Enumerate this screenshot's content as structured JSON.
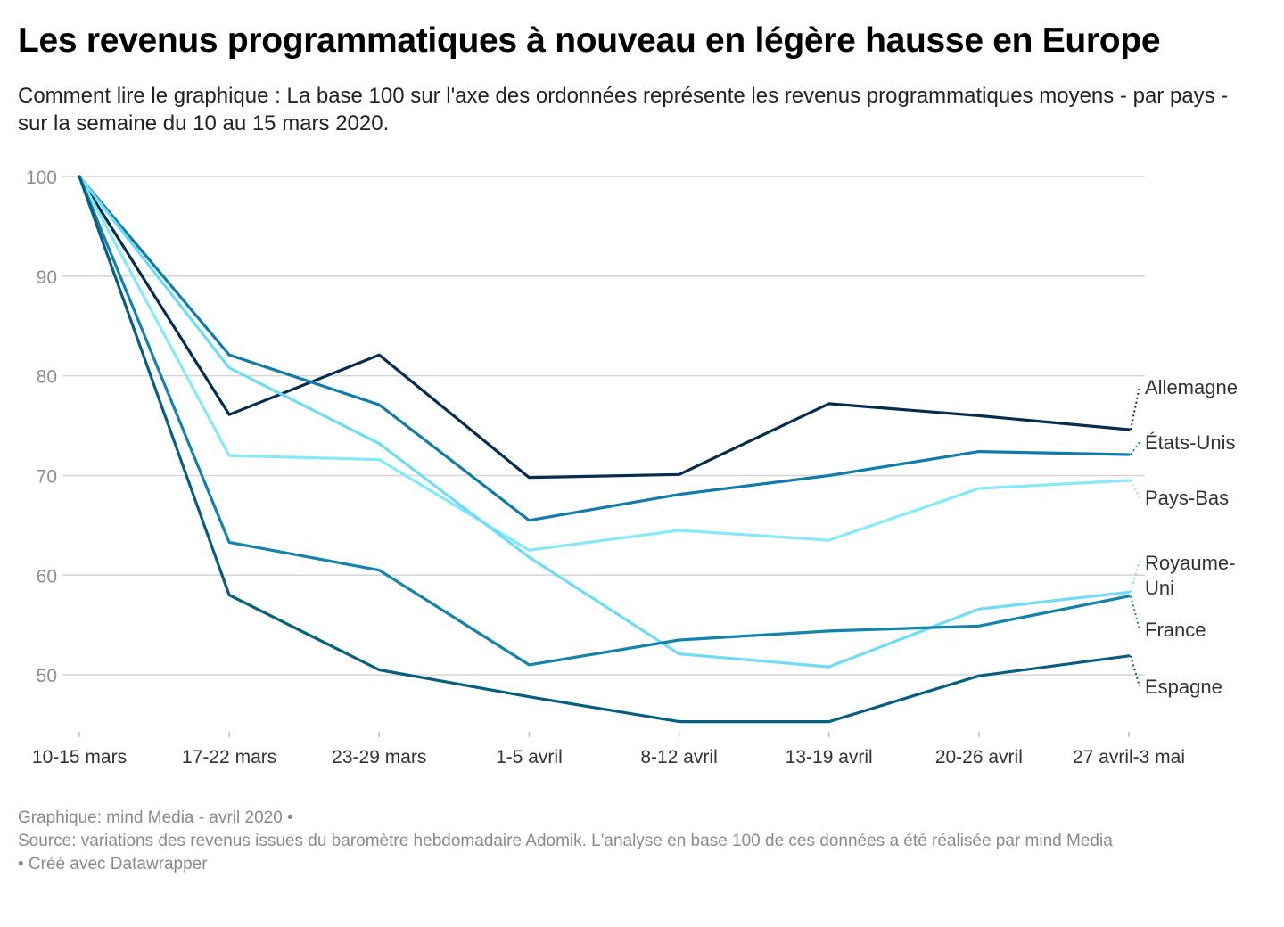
{
  "header": {
    "title": "Les revenus programmatiques à nouveau en légère hausse en Europe",
    "subtitle": "Comment lire le graphique : La base 100 sur l'axe des ordonnées représente les revenus programmatiques moyens - par pays - sur la semaine du 10 au 15 mars 2020."
  },
  "footer": {
    "credit": "Graphique: mind Media - avril 2020 •",
    "source": "Source: variations des revenus issues du baromètre hebdomadaire Adomik. L'analyse en base 100 de ces données a été réalisée par mind Media",
    "tool": " • Créé avec Datawrapper"
  },
  "chart_data": {
    "type": "line",
    "title": "Les revenus programmatiques à nouveau en légère hausse en Europe",
    "xlabel": "",
    "ylabel": "",
    "ylim": [
      45,
      100
    ],
    "yticks": [
      50,
      60,
      70,
      80,
      90,
      100
    ],
    "grid": true,
    "legend": "direct labels at line ends (right)",
    "categories": [
      "10-15 mars",
      "17-22 mars",
      "23-29 mars",
      "1-5 avril",
      "8-12 avril",
      "13-19 avril",
      "20-26 avril",
      "27 avril-3 mai"
    ],
    "series": [
      {
        "name": "Allemagne",
        "color": "#062d4f",
        "values": [
          100,
          76.1,
          82.1,
          69.8,
          70.1,
          77.2,
          76.0,
          74.6
        ]
      },
      {
        "name": "États-Unis",
        "color": "#107cac",
        "values": [
          100,
          82.1,
          77.1,
          65.5,
          68.1,
          70.0,
          72.4,
          72.1
        ]
      },
      {
        "name": "Pays-Bas",
        "color": "#84e9fb",
        "values": [
          100,
          72.0,
          71.6,
          62.5,
          64.5,
          63.5,
          68.7,
          69.5
        ]
      },
      {
        "name": "Royaume-Uni",
        "color": "#6fdcf6",
        "values": [
          100,
          80.8,
          73.2,
          61.8,
          52.1,
          50.8,
          56.6,
          58.3
        ]
      },
      {
        "name": "France",
        "color": "#1383ad",
        "values": [
          100,
          63.3,
          60.5,
          51.0,
          53.5,
          54.4,
          54.9,
          57.9
        ]
      },
      {
        "name": "Espagne",
        "color": "#065e82",
        "values": [
          100,
          58.0,
          50.5,
          47.8,
          45.3,
          45.3,
          49.9,
          51.9
        ]
      }
    ]
  }
}
